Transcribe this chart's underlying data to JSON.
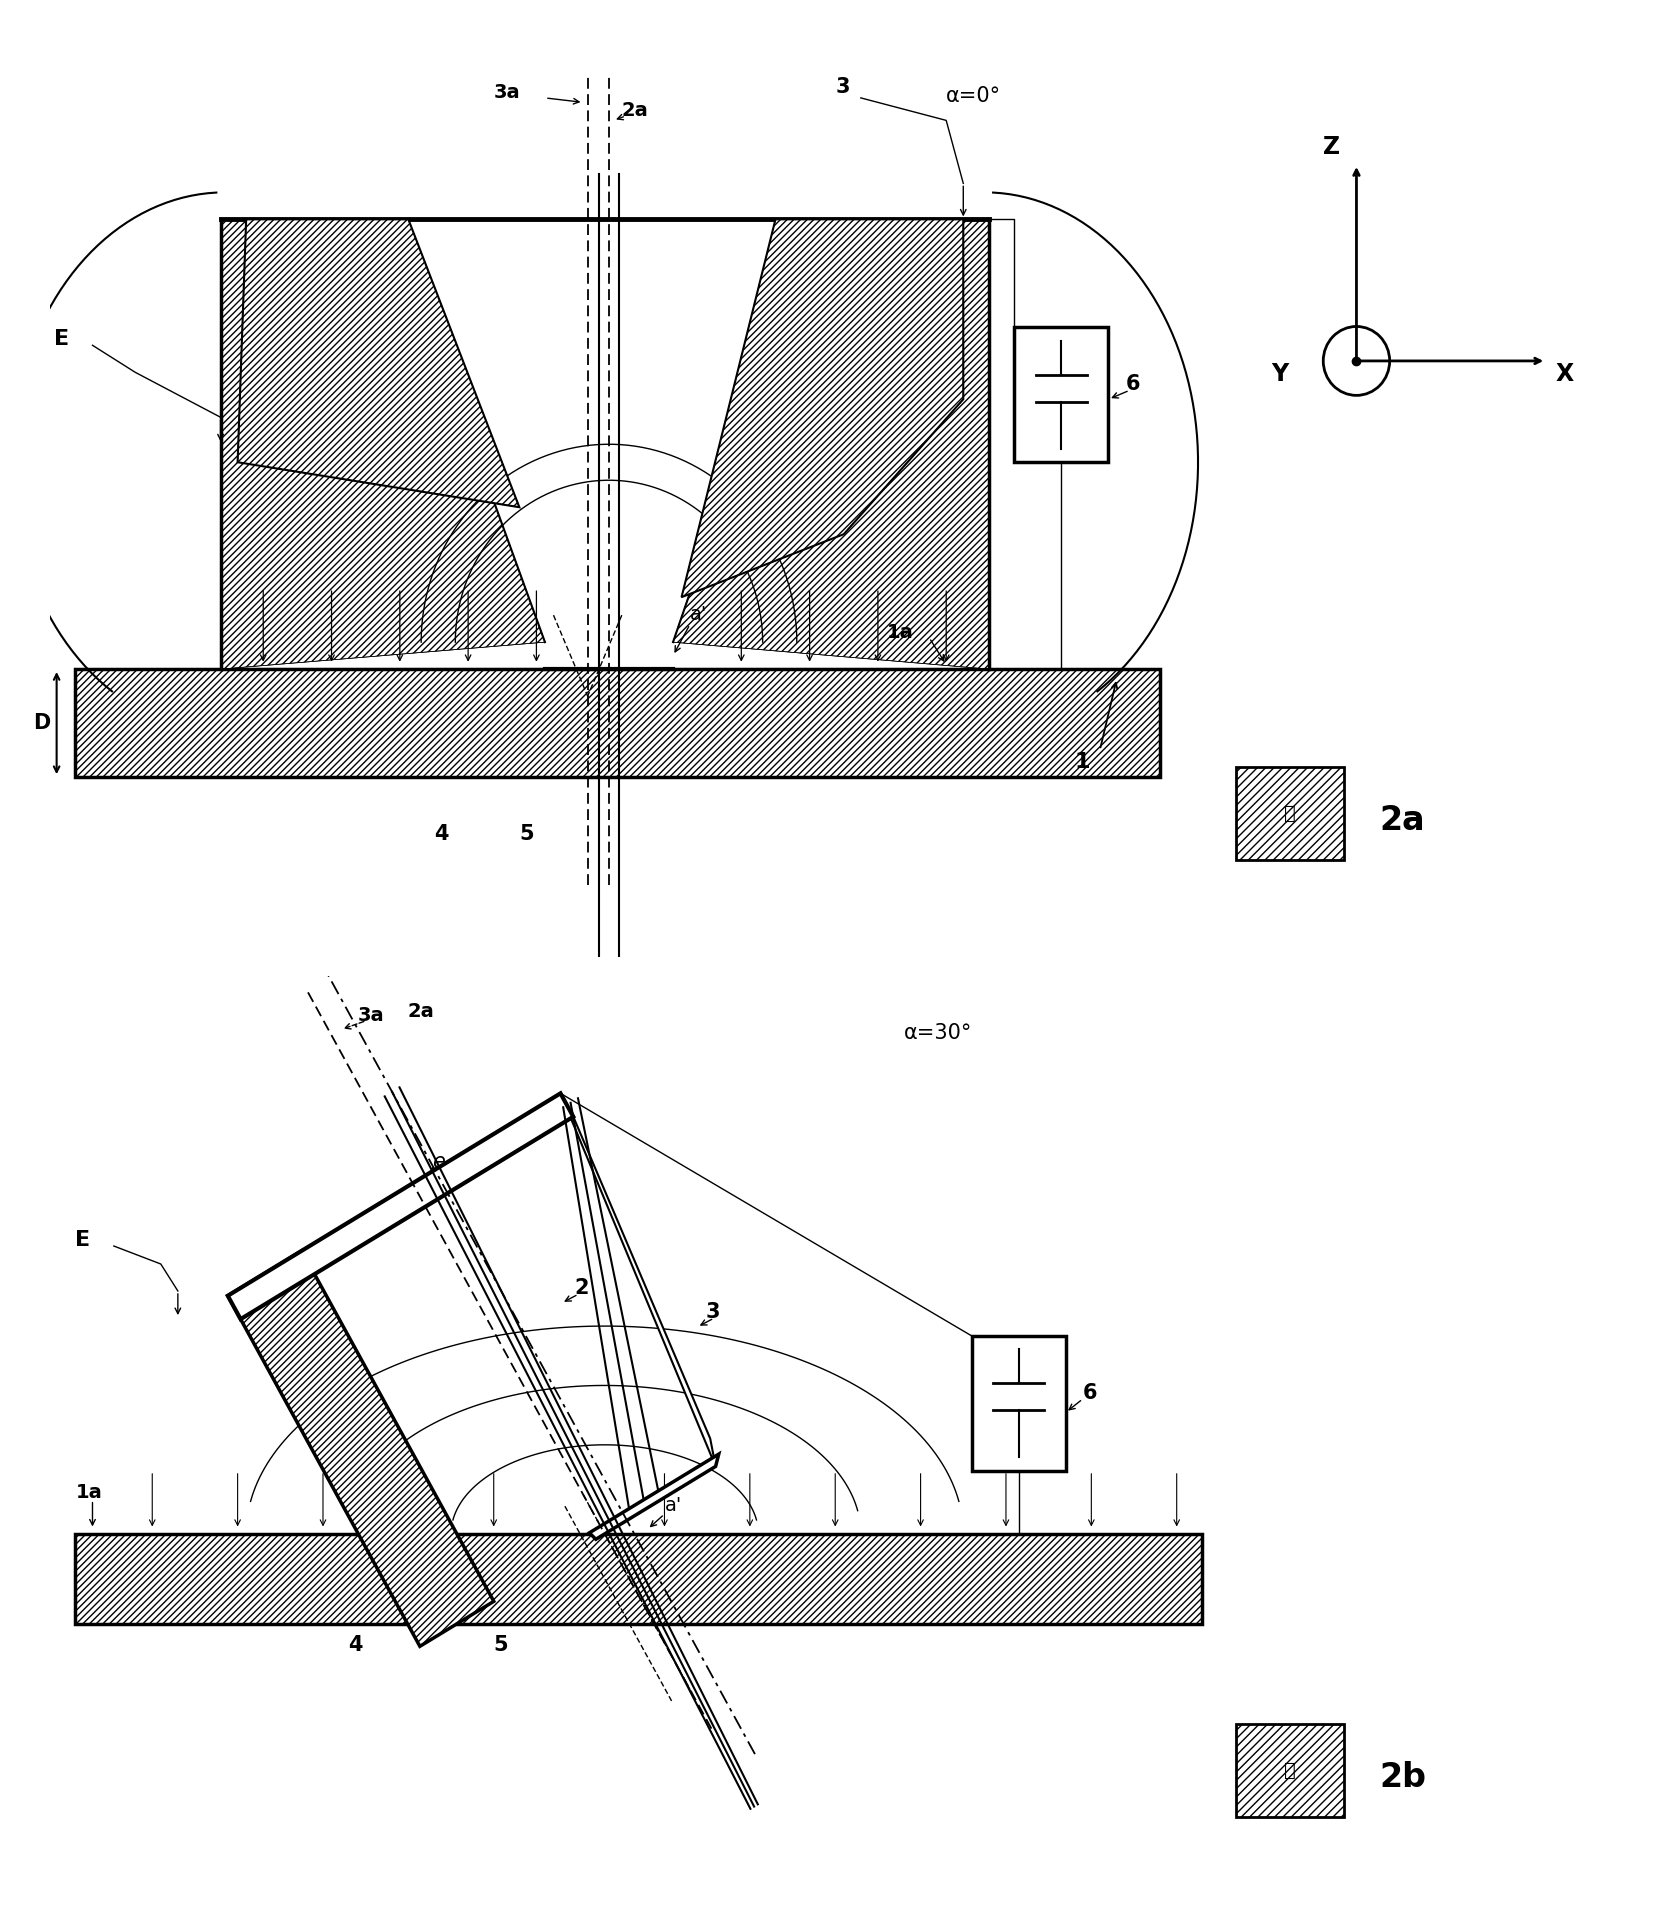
{
  "fig_width": 16.6,
  "fig_height": 19.14,
  "bg_color": "#ffffff",
  "lc": "#000000",
  "lw_thick": 2.5,
  "lw_med": 1.5,
  "lw_thin": 1.0,
  "fs_label": 13,
  "fs_title": 15,
  "fs_fig": 20,
  "alpha_label_top": "α=0°",
  "alpha_label_bot": "α=30°",
  "fig_label_top": "2a",
  "fig_label_bot": "2b",
  "kanji": "图"
}
